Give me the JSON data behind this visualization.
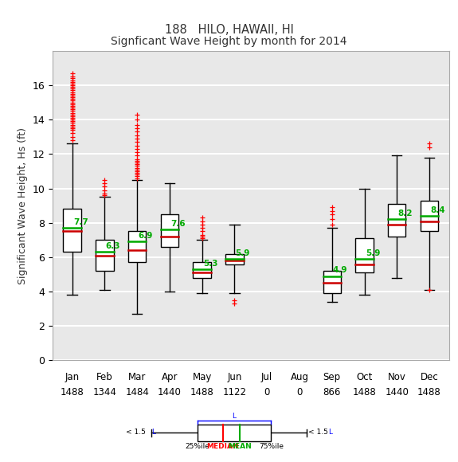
{
  "title1": "188   HILO, HAWAII, HI",
  "title2": "Signficant Wave Height by month for 2014",
  "ylabel": "Significant Wave Height, Hs (ft)",
  "months": [
    "Jan",
    "Feb",
    "Mar",
    "Apr",
    "May",
    "Jun",
    "Jul",
    "Aug",
    "Sep",
    "Oct",
    "Nov",
    "Dec"
  ],
  "counts": [
    1488,
    1344,
    1484,
    1440,
    1488,
    1122,
    0,
    0,
    866,
    1488,
    1440,
    1488
  ],
  "ylim": [
    0,
    18
  ],
  "yticks": [
    0,
    2,
    4,
    6,
    8,
    10,
    12,
    14,
    16
  ],
  "box_data": {
    "Jan": {
      "q1": 6.3,
      "median": 7.5,
      "mean": 7.7,
      "q3": 8.8,
      "whislo": 3.8,
      "whishi": 12.6,
      "fliers_high": [
        12.8,
        13.0,
        13.2,
        13.4,
        13.5,
        13.6,
        13.7,
        13.8,
        13.9,
        14.0,
        14.1,
        14.2,
        14.3,
        14.4,
        14.5,
        14.6,
        14.7,
        14.8,
        14.9,
        15.0,
        15.1,
        15.2,
        15.3,
        15.4,
        15.5,
        15.6,
        15.7,
        15.8,
        15.9,
        16.0,
        16.1,
        16.2,
        16.3,
        16.4,
        16.5,
        16.7
      ],
      "fliers_low": []
    },
    "Feb": {
      "q1": 5.2,
      "median": 6.1,
      "mean": 6.3,
      "q3": 7.0,
      "whislo": 4.1,
      "whishi": 9.5,
      "fliers_high": [
        9.6,
        9.7,
        9.9,
        10.1,
        10.3,
        10.5
      ],
      "fliers_low": []
    },
    "Mar": {
      "q1": 5.7,
      "median": 6.4,
      "mean": 6.9,
      "q3": 7.5,
      "whislo": 2.7,
      "whishi": 10.5,
      "fliers_high": [
        10.6,
        10.7,
        10.8,
        10.9,
        11.0,
        11.1,
        11.2,
        11.3,
        11.4,
        11.5,
        11.6,
        11.7,
        11.9,
        12.1,
        12.3,
        12.5,
        12.7,
        12.9,
        13.1,
        13.3,
        13.5,
        13.7,
        14.0,
        14.3
      ],
      "fliers_low": []
    },
    "Apr": {
      "q1": 6.6,
      "median": 7.2,
      "mean": 7.6,
      "q3": 8.5,
      "whislo": 4.0,
      "whishi": 10.3,
      "fliers_high": [],
      "fliers_low": []
    },
    "May": {
      "q1": 4.8,
      "median": 5.1,
      "mean": 5.3,
      "q3": 5.7,
      "whislo": 3.9,
      "whishi": 7.0,
      "fliers_high": [
        7.1,
        7.2,
        7.3,
        7.5,
        7.7,
        7.9,
        8.1,
        8.3
      ],
      "fliers_low": []
    },
    "Jun": {
      "q1": 5.6,
      "median": 5.8,
      "mean": 5.9,
      "q3": 6.2,
      "whislo": 3.9,
      "whishi": 7.9,
      "fliers_high": [],
      "fliers_low": [
        3.5,
        3.3
      ]
    },
    "Jul": null,
    "Aug": null,
    "Sep": {
      "q1": 3.9,
      "median": 4.5,
      "mean": 4.9,
      "q3": 5.2,
      "whislo": 3.4,
      "whishi": 7.7,
      "fliers_high": [
        7.9,
        8.2,
        8.5,
        8.7,
        8.9
      ],
      "fliers_low": []
    },
    "Oct": {
      "q1": 5.1,
      "median": 5.6,
      "mean": 5.9,
      "q3": 7.1,
      "whislo": 3.8,
      "whishi": 10.0,
      "fliers_high": [],
      "fliers_low": []
    },
    "Nov": {
      "q1": 7.2,
      "median": 7.9,
      "mean": 8.2,
      "q3": 9.1,
      "whislo": 4.8,
      "whishi": 11.9,
      "fliers_high": [],
      "fliers_low": []
    },
    "Dec": {
      "q1": 7.5,
      "median": 8.1,
      "mean": 8.4,
      "q3": 9.3,
      "whislo": 4.1,
      "whishi": 11.8,
      "fliers_high": [
        12.4,
        12.6
      ],
      "fliers_low": [
        4.1
      ]
    }
  },
  "box_color": "white",
  "box_edge_color": "black",
  "median_color": "#cc0000",
  "mean_color": "#00aa00",
  "whisker_color": "black",
  "flier_color": "red",
  "background_color": "#e8e8e8",
  "grid_color": "white",
  "title_color": "#333333",
  "box_width": 0.55
}
